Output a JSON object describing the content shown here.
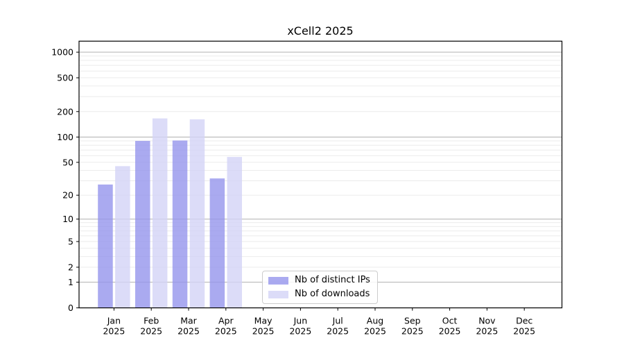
{
  "chart_data": {
    "type": "bar",
    "title": "xCell2 2025",
    "categories": [
      "Jan 2025",
      "Feb 2025",
      "Mar 2025",
      "Apr 2025",
      "May 2025",
      "Jun 2025",
      "Jul 2025",
      "Aug 2025",
      "Sep 2025",
      "Oct 2025",
      "Nov 2025",
      "Dec 2025"
    ],
    "series": [
      {
        "name": "Nb of distinct IPs",
        "color": "#9595ec",
        "opacity": 0.8,
        "values": [
          27,
          90,
          91,
          32,
          0,
          0,
          0,
          0,
          0,
          0,
          0,
          0
        ]
      },
      {
        "name": "Nb of downloads",
        "color": "#d3d3f6",
        "opacity": 0.8,
        "values": [
          45,
          166,
          162,
          58,
          0,
          0,
          0,
          0,
          0,
          0,
          0,
          0
        ]
      }
    ],
    "yscale": "log1p",
    "yticks": [
      0,
      1,
      2,
      5,
      10,
      20,
      50,
      100,
      200,
      500,
      1000
    ],
    "ylim": [
      0,
      1350
    ],
    "xlabel": "",
    "ylabel": "",
    "grid": true,
    "major_grid_values": [
      1,
      10,
      100,
      1000
    ],
    "grid_major_color": "#b0b0b0",
    "grid_minor_color": "#ebebeb",
    "legend_position": "lower center"
  }
}
